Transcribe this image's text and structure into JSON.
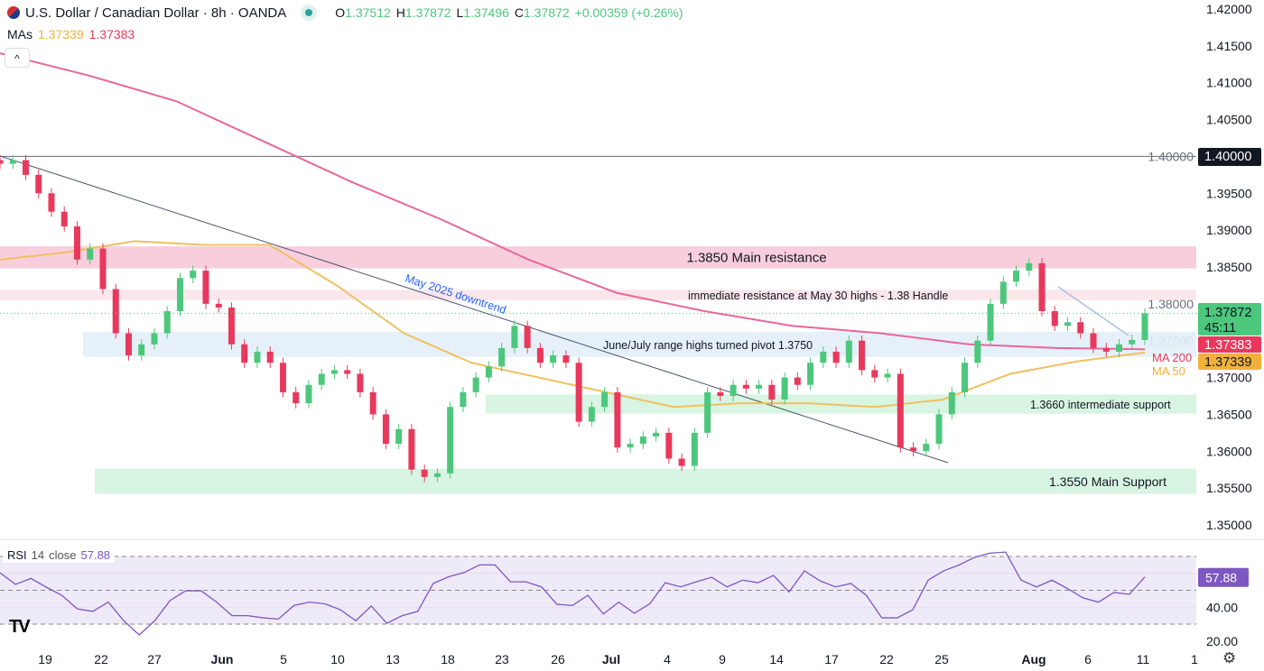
{
  "header": {
    "symbol_title": "U.S. Dollar / Canadian Dollar · 8h · OANDA",
    "open_label": "O",
    "open": "1.37512",
    "high_label": "H",
    "high": "1.37872",
    "low_label": "L",
    "low": "1.37496",
    "close_label": "C",
    "close": "1.37872",
    "change": "+0.00359 (+0.26%)",
    "status_icon": "market-open-dot"
  },
  "mas": {
    "label": "MAs",
    "ma50": "1.37339",
    "ma200": "1.37383"
  },
  "collapse_icon": "chevron-up-icon",
  "colors": {
    "up": "#4cc77c",
    "down": "#e8395c",
    "ma200": "#e8679a",
    "ma50": "#f0c060",
    "rsi": "#7e57c2",
    "resistance_zone": "#f7c9d9",
    "support_zone": "#d4f3df",
    "pivot_zone": "#e3eef8"
  },
  "chart_data": {
    "type": "candlestick",
    "price_axis": {
      "ylim": [
        1.35,
        1.42
      ],
      "ticks": [
        "1.42000",
        "1.41500",
        "1.41000",
        "1.40500",
        "1.40000",
        "1.39500",
        "1.39000",
        "1.38500",
        "1.38000",
        "1.37500",
        "1.37000",
        "1.36500",
        "1.36000",
        "1.35500",
        "1.35000"
      ]
    },
    "x_ticks": [
      {
        "label": "19",
        "bold": false
      },
      {
        "label": "22",
        "bold": false
      },
      {
        "label": "27",
        "bold": false
      },
      {
        "label": "Jun",
        "bold": true
      },
      {
        "label": "5",
        "bold": false
      },
      {
        "label": "10",
        "bold": false
      },
      {
        "label": "13",
        "bold": false
      },
      {
        "label": "18",
        "bold": false
      },
      {
        "label": "23",
        "bold": false
      },
      {
        "label": "26",
        "bold": false
      },
      {
        "label": "Jul",
        "bold": true
      },
      {
        "label": "4",
        "bold": false
      },
      {
        "label": "9",
        "bold": false
      },
      {
        "label": "14",
        "bold": false
      },
      {
        "label": "17",
        "bold": false
      },
      {
        "label": "22",
        "bold": false
      },
      {
        "label": "25",
        "bold": false
      },
      {
        "label": "Aug",
        "bold": true
      },
      {
        "label": "6",
        "bold": false
      },
      {
        "label": "11",
        "bold": false
      },
      {
        "label": "1",
        "bold": false
      }
    ],
    "closes": [
      1.399,
      1.3995,
      1.3975,
      1.395,
      1.3925,
      1.3905,
      1.386,
      1.3875,
      1.382,
      1.376,
      1.373,
      1.3745,
      1.376,
      1.379,
      1.3835,
      1.3845,
      1.38,
      1.3795,
      1.3745,
      1.372,
      1.3735,
      1.372,
      1.368,
      1.3665,
      1.369,
      1.3705,
      1.371,
      1.3705,
      1.368,
      1.365,
      1.361,
      1.363,
      1.3575,
      1.3565,
      1.357,
      1.366,
      1.368,
      1.37,
      1.3715,
      1.374,
      1.377,
      1.374,
      1.372,
      1.373,
      1.372,
      1.364,
      1.366,
      1.368,
      1.3605,
      1.361,
      1.362,
      1.3625,
      1.359,
      1.358,
      1.3625,
      1.368,
      1.3675,
      1.369,
      1.3685,
      1.369,
      1.367,
      1.37,
      1.369,
      1.372,
      1.3735,
      1.372,
      1.375,
      1.371,
      1.37,
      1.3705,
      1.3605,
      1.36,
      1.361,
      1.365,
      1.368,
      1.372,
      1.375,
      1.38,
      1.383,
      1.3845,
      1.3855,
      1.379,
      1.377,
      1.3775,
      1.376,
      1.374,
      1.3735,
      1.3745,
      1.3751,
      1.37872
    ],
    "ma200": [
      1.414,
      1.411,
      1.4075,
      1.402,
      1.3965,
      1.3915,
      1.386,
      1.3815,
      1.379,
      1.377,
      1.376,
      1.3745,
      1.374,
      1.37383
    ],
    "ma50": [
      1.386,
      1.387,
      1.3885,
      1.388,
      1.388,
      1.3825,
      1.376,
      1.372,
      1.37,
      1.368,
      1.366,
      1.3665,
      1.3665,
      1.366,
      1.367,
      1.3705,
      1.3722,
      1.37339
    ],
    "levels": {
      "round": 1.4,
      "last": 1.37872
    },
    "zones": [
      {
        "name": "main-resistance",
        "low": 1.3848,
        "high": 1.3878,
        "label": "1.3850 Main resistance"
      },
      {
        "name": "immediate-resistance",
        "low": 1.3805,
        "high": 1.3819,
        "label": "immediate resistance at May 30 highs - 1.38 Handle"
      },
      {
        "name": "pivot",
        "low": 1.3728,
        "high": 1.3762,
        "label": "June/July range highs turned pivot 1.3750"
      },
      {
        "name": "intermediate-support",
        "low": 1.3651,
        "high": 1.3677,
        "label": "1.3660 intermediate support"
      },
      {
        "name": "main-support",
        "low": 1.3542,
        "high": 1.3576,
        "label": "1.3550 Main Support"
      }
    ],
    "trendline_label": "May 2025 downtrend",
    "ma200_label": "MA 200",
    "ma50_label": "MA 50",
    "badges": {
      "round": "1.40000",
      "last": "1.37872",
      "countdown": "45:11",
      "ma200": "1.37383",
      "ma50": "1.37339"
    },
    "rsi": {
      "label": "RSI",
      "length": "14",
      "source": "close",
      "value": "57.88",
      "ticks": [
        "40.00",
        "20.00"
      ],
      "bands": [
        70,
        50,
        30
      ],
      "values": [
        60.4,
        53.5,
        57,
        51.8,
        47,
        39,
        37.5,
        43,
        32,
        23.6,
        32,
        44,
        49.7,
        49.7,
        43,
        35,
        35,
        33.7,
        33,
        41,
        43,
        42,
        38.5,
        32,
        40.7,
        30.5,
        35,
        37.5,
        54,
        58,
        60.5,
        65,
        65,
        55,
        55,
        52,
        41.7,
        41,
        47,
        36,
        43,
        36.4,
        42,
        54.5,
        52,
        55,
        57.7,
        52,
        56,
        54.5,
        58.8,
        49,
        61.5,
        55.6,
        52,
        54,
        47,
        33.7,
        33.7,
        38.5,
        56,
        61.5,
        65,
        69.5,
        72,
        72.6,
        56,
        52,
        56,
        51,
        45.5,
        43,
        48.7,
        47.6,
        57.88
      ]
    }
  },
  "settings_icon": "gear-icon",
  "logo": "TV"
}
